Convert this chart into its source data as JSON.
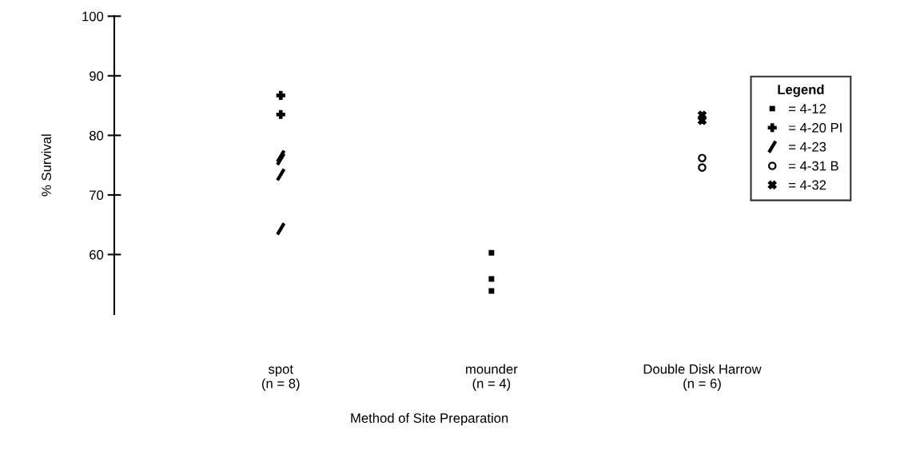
{
  "chart_data": {
    "type": "scatter",
    "xlabel": "Method of Site Preparation",
    "ylabel": "% Survival",
    "categories": [
      "spot\n(n = 8)",
      "mounder\n(n = 4)",
      "Double Disk Harrow\n(n = 6)"
    ],
    "ylim": [
      50,
      100
    ],
    "yticks": [
      60,
      70,
      80,
      90,
      100
    ],
    "legend_title": "Legend",
    "legend": "right",
    "series": [
      {
        "name": "= 4-12",
        "marker": "square",
        "color": "#000000",
        "x": [
          "mounder\n(n = 4)",
          "mounder\n(n = 4)",
          "mounder\n(n = 4)"
        ],
        "values": [
          60.3,
          55.9,
          53.9
        ]
      },
      {
        "name": "= 4-20 PI",
        "marker": "plus",
        "color": "#000000",
        "x": [
          "spot\n(n = 8)",
          "spot\n(n = 8)"
        ],
        "values": [
          86.7,
          83.5
        ]
      },
      {
        "name": "= 4-23",
        "color": "#000000",
        "x": [
          "spot\n(n = 8)",
          "spot\n(n = 8)",
          "spot\n(n = 8)",
          "spot\n(n = 8)"
        ],
        "values": [
          76.5,
          76.0,
          73.4,
          64.3
        ]
      },
      {
        "name": "= 4-31 B",
        "marker": "circle",
        "color": "#000000",
        "x": [
          "Double Disk Harrow\n(n = 6)",
          "Double Disk Harrow\n(n = 6)"
        ],
        "values": [
          76.2,
          74.6
        ]
      },
      {
        "name": "= 4-32",
        "marker": "x",
        "color": "#000000",
        "x": [
          "Double Disk Harrow\n(n = 6)",
          "Double Disk Harrow\n(n = 6)"
        ],
        "values": [
          83.4,
          82.5
        ]
      }
    ]
  }
}
